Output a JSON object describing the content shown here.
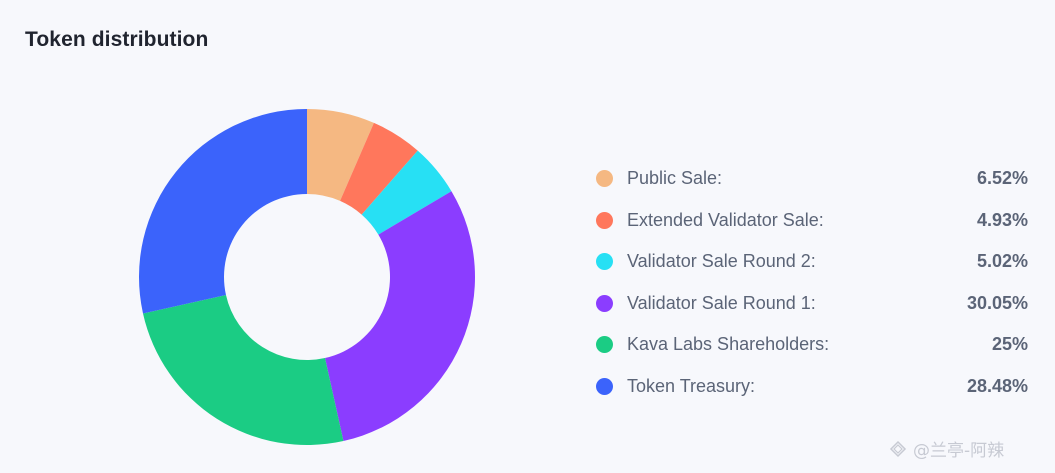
{
  "page": {
    "title": "Token distribution",
    "watermark": "@兰亭-阿辣"
  },
  "chart_data": {
    "type": "pie",
    "variant": "donut",
    "title": "Token distribution",
    "series": [
      {
        "name": "Public Sale:",
        "value": 6.52,
        "label": "6.52%",
        "color": "#f5b882"
      },
      {
        "name": "Extended Validator Sale:",
        "value": 4.93,
        "label": "4.93%",
        "color": "#ff775c"
      },
      {
        "name": "Validator Sale Round 2:",
        "value": 5.02,
        "label": "5.02%",
        "color": "#27e0f4"
      },
      {
        "name": "Validator Sale Round 1:",
        "value": 30.05,
        "label": "30.05%",
        "color": "#8b3dff"
      },
      {
        "name": "Kava Labs Shareholders:",
        "value": 25,
        "label": "25%",
        "color": "#1bcc84"
      },
      {
        "name": "Token Treasury:",
        "value": 28.48,
        "label": "28.48%",
        "color": "#3b63fb"
      }
    ],
    "legend_position": "right"
  }
}
